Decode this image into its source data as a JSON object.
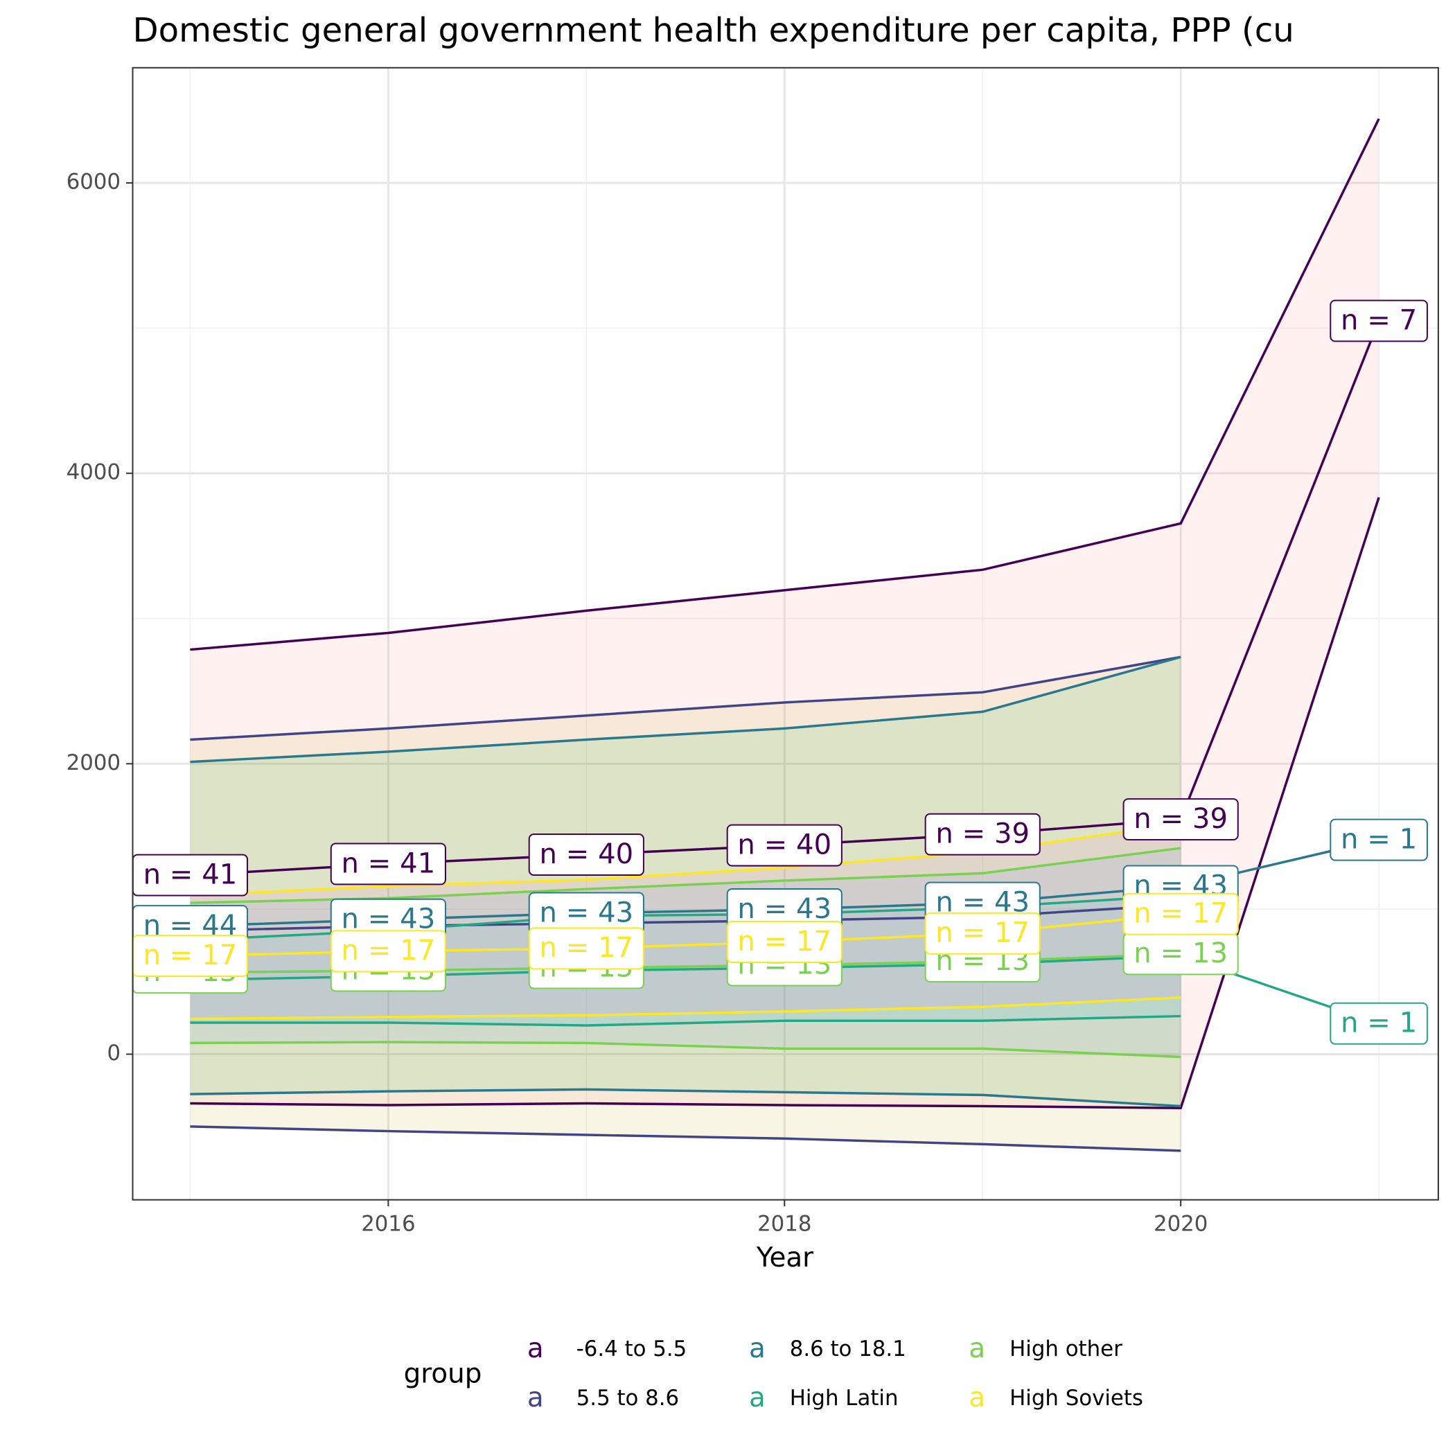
{
  "chart_data": {
    "type": "ribbon-line",
    "title": "Domestic general government health expenditure per capita, PPP (cu",
    "x_label": "Year",
    "legend_title": "group",
    "legend_glyph": "a",
    "x": [
      2015,
      2016,
      2017,
      2018,
      2019,
      2020,
      2021
    ],
    "xlim": [
      2014.71,
      2021.3
    ],
    "ylim": [
      -1003,
      6793
    ],
    "xticks": [
      2016,
      2018,
      2020
    ],
    "yticks": [
      0,
      2000,
      4000,
      6000
    ],
    "x_minor_grid": [
      2015,
      2017,
      2019,
      2021
    ],
    "y_minor_grid": [
      1000,
      3000,
      5000
    ],
    "grid": true,
    "series": [
      {
        "name": "-6.4 to 5.5",
        "color": "#440154",
        "fill": "#F8766D",
        "mean": [
          1233,
          1310,
          1374,
          1438,
          1514,
          1617,
          5050
        ],
        "upper": [
          2786,
          2901,
          3054,
          3195,
          3336,
          3655,
          6441
        ],
        "lower": [
          -339,
          -351,
          -339,
          -351,
          -358,
          -371,
          3834
        ],
        "n_labels": [
          "n = 41",
          "n = 41",
          "n = 40",
          "n = 40",
          "n = 39",
          "n = 39",
          "n = 7"
        ]
      },
      {
        "name": "5.5 to 8.6",
        "color": "#414487",
        "fill": "#B79F00",
        "mean": [
          850,
          882,
          901,
          920,
          946,
          1029,
          null
        ],
        "upper": [
          2166,
          2243,
          2332,
          2422,
          2492,
          2735,
          null
        ],
        "lower": [
          -498,
          -530,
          -556,
          -581,
          -620,
          -665,
          null
        ],
        "n_labels": [
          null,
          null,
          null,
          null,
          null,
          null,
          null
        ]
      },
      {
        "name": "8.6 to 18.1",
        "color": "#2A788E",
        "fill": "#00BA38",
        "mean": [
          882,
          927,
          971,
          997,
          1042,
          1157,
          1476
        ],
        "upper": [
          2013,
          2083,
          2166,
          2243,
          2358,
          2735,
          null
        ],
        "lower": [
          -275,
          -256,
          -243,
          -262,
          -281,
          -358,
          null
        ],
        "n_labels": [
          "n = 44",
          "n = 43",
          "n = 43",
          "n = 43",
          "n = 43",
          "n = 43",
          "n = 1"
        ]
      },
      {
        "name": "High Latin",
        "color": "#22A884",
        "fill": "#00BFC4",
        "mean": [
          511,
          537,
          575,
          594,
          620,
          677,
          211
        ],
        "upper": [
          786,
          850,
          952,
          965,
          1010,
          1093,
          null
        ],
        "lower": [
          217,
          217,
          198,
          230,
          230,
          262,
          null
        ],
        "n_labels": [
          null,
          null,
          null,
          null,
          null,
          null,
          "n = 1"
        ]
      },
      {
        "name": "High other",
        "color": "#7AD151",
        "fill": "#619CFF",
        "mean": [
          562,
          575,
          594,
          613,
          639,
          690,
          null
        ],
        "upper": [
          1042,
          1074,
          1137,
          1195,
          1246,
          1419,
          null
        ],
        "lower": [
          77,
          83,
          77,
          38,
          38,
          -19,
          null
        ],
        "n_labels": [
          "n = 13",
          "n = 13",
          "n = 13",
          "n = 13",
          "n = 13",
          "n = 13",
          null
        ]
      },
      {
        "name": "High Soviets",
        "color": "#FDE725",
        "fill": "#F564E3",
        "mean": [
          677,
          709,
          728,
          773,
          831,
          965,
          null
        ],
        "upper": [
          1093,
          1157,
          1201,
          1284,
          1393,
          1585,
          null
        ],
        "lower": [
          243,
          256,
          268,
          294,
          326,
          390,
          null
        ],
        "n_labels": [
          "n = 17",
          "n = 17",
          "n = 17",
          "n = 17",
          "n = 17",
          "n = 17",
          null
        ]
      }
    ]
  }
}
